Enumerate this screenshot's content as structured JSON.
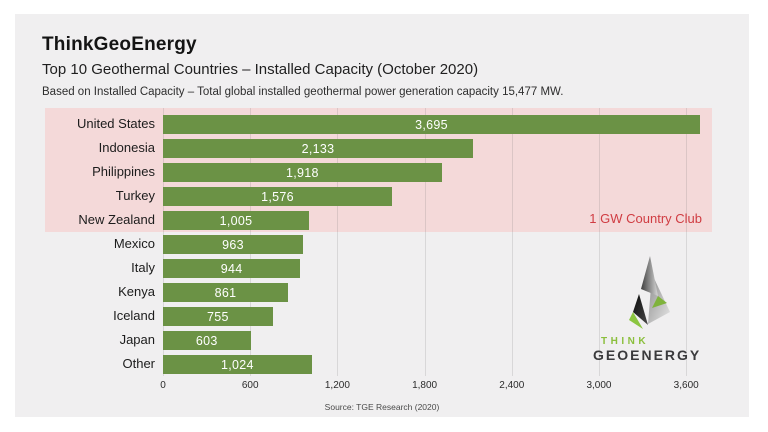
{
  "header": {
    "brand": "ThinkGeoEnergy",
    "title": "Top 10 Geothermal Countries – Installed Capacity (October 2020)",
    "caption": "Based on Installed Capacity – Total global installed geothermal power generation capacity 15,477 MW."
  },
  "chart_data": {
    "type": "bar",
    "orientation": "horizontal",
    "title": "Top 10 Geothermal Countries – Installed Capacity (October 2020)",
    "categories": [
      "United States",
      "Indonesia",
      "Philippines",
      "Turkey",
      "New Zealand",
      "Mexico",
      "Italy",
      "Kenya",
      "Iceland",
      "Japan",
      "Other"
    ],
    "values": [
      3695,
      2133,
      1918,
      1576,
      1005,
      963,
      944,
      861,
      755,
      603,
      1024
    ],
    "value_labels": [
      "3,695",
      "2,133",
      "1,918",
      "1,576",
      "1,005",
      "963",
      "944",
      "861",
      "755",
      "603",
      "1,024"
    ],
    "x_ticks": [
      0,
      600,
      1200,
      1800,
      2400,
      3000,
      3600
    ],
    "x_tick_labels": [
      "0",
      "600",
      "1,200",
      "1,800",
      "2,400",
      "3,000",
      "3,600"
    ],
    "xlim": [
      0,
      3695
    ],
    "grid": true,
    "legend": false,
    "bar_color": "#6b9245",
    "highlight": {
      "label": "1 GW Country Club",
      "label_color": "#d03c42",
      "band_color": "#f4d9d9",
      "rows_covered": 5
    },
    "source": "Source: TGE Research (2020)"
  },
  "logo": {
    "line1": "THINK",
    "line2": "GEOENERGY",
    "accent_color": "#8bbf3d",
    "text_color": "#3a3a3c"
  }
}
